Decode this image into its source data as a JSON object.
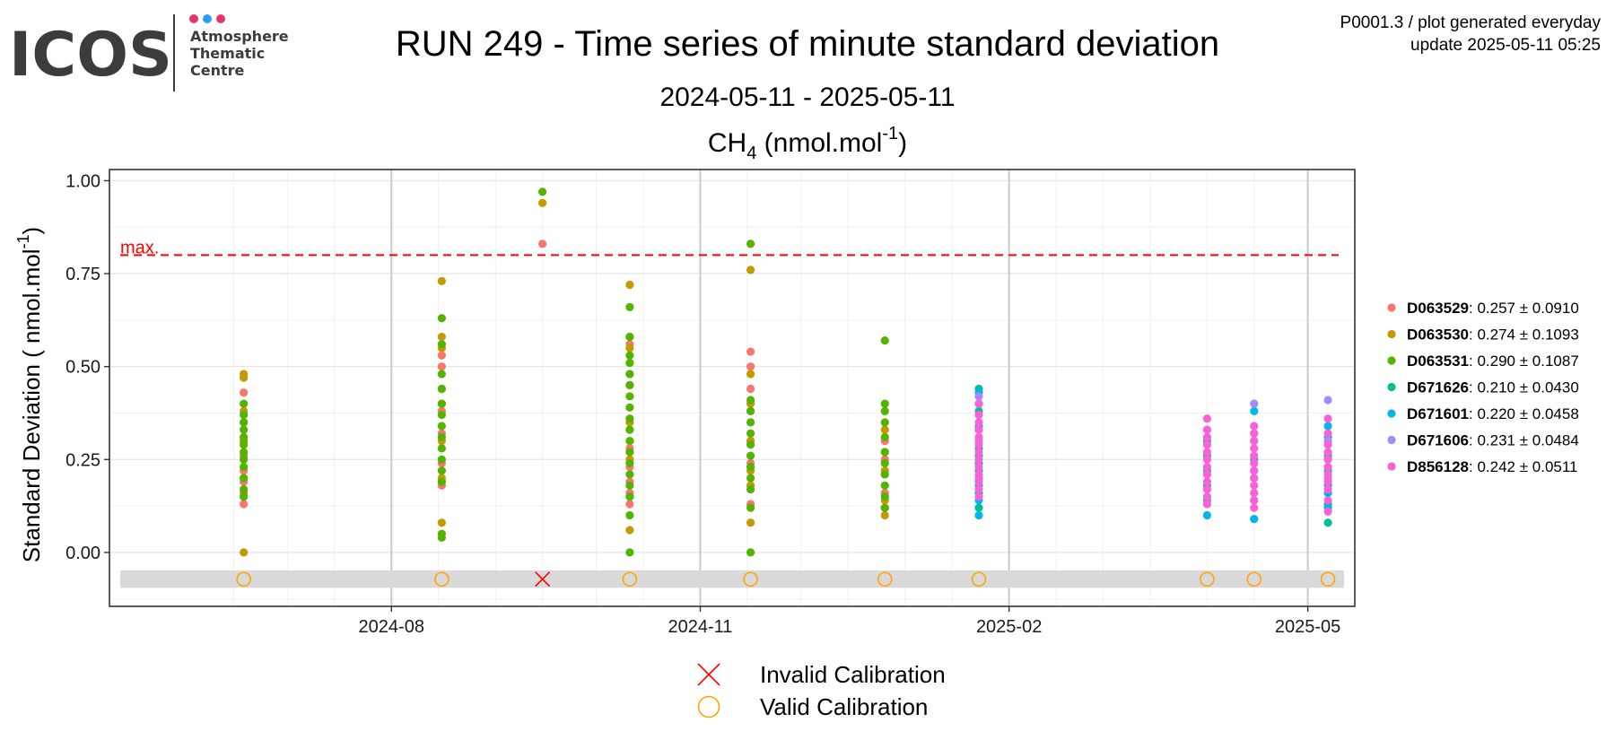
{
  "header": {
    "logo_text": "ICOS",
    "logo_sub_lines": [
      "Atmosphere",
      "Thematic",
      "Centre"
    ],
    "logo_dot_colors": [
      "#e8336d",
      "#2a9df4",
      "#e8336d"
    ],
    "title": "RUN 249 - Time series of minute standard deviation",
    "date_range": "2024-05-11 - 2025-05-11",
    "species_main": "CH",
    "species_sub": "4",
    "species_unit": " (nmol.mol",
    "species_exp": "-1",
    "species_close": ")",
    "meta_line1": "P0001.3 / plot generated everyday",
    "meta_line2": "update  2025-05-11 05:25"
  },
  "chart_data": {
    "type": "scatter",
    "title": "CH4 (nmol.mol-1)",
    "xlabel": "",
    "ylabel": "Standard Deviation ( nmol.mol",
    "ylabel_exp": "-1",
    "ylabel_close": ")",
    "x_range": [
      "2024-05-09",
      "2025-05-15"
    ],
    "ylim": [
      -0.145,
      1.03
    ],
    "y_ticks": [
      0.0,
      0.25,
      0.5,
      0.75,
      1.0
    ],
    "y_tick_labels": [
      "0.00",
      "0.25",
      "0.50",
      "0.75",
      "1.00"
    ],
    "x_ticks": [
      "2024-08-01",
      "2024-11-01",
      "2025-02-01",
      "2025-05-01"
    ],
    "x_tick_labels": [
      "2024-08",
      "2024-11",
      "2025-02",
      "2025-05"
    ],
    "grid": true,
    "legend_position": "right",
    "max_line": {
      "value": 0.8,
      "label": "max.",
      "color": "#ff0000"
    },
    "calibration_band": {
      "y_from": -0.095,
      "y_to": -0.048,
      "marker_y": -0.072,
      "color": "#d9d9d9"
    },
    "series": [
      {
        "name": "D063529",
        "color": "#F8766D",
        "mean": "0.257",
        "sd": "0.0910",
        "points": [
          [
            "2024-06-18",
            0.13
          ],
          [
            "2024-06-18",
            0.16
          ],
          [
            "2024-06-18",
            0.19
          ],
          [
            "2024-06-18",
            0.22
          ],
          [
            "2024-06-18",
            0.26
          ],
          [
            "2024-06-18",
            0.3
          ],
          [
            "2024-06-18",
            0.35
          ],
          [
            "2024-06-18",
            0.43
          ],
          [
            "2024-08-16",
            0.18
          ],
          [
            "2024-08-16",
            0.24
          ],
          [
            "2024-08-16",
            0.32
          ],
          [
            "2024-08-16",
            0.38
          ],
          [
            "2024-08-16",
            0.44
          ],
          [
            "2024-08-16",
            0.5
          ],
          [
            "2024-08-16",
            0.53
          ],
          [
            "2024-09-15",
            0.83
          ],
          [
            "2024-10-11",
            0.13
          ],
          [
            "2024-10-11",
            0.16
          ],
          [
            "2024-10-11",
            0.19
          ],
          [
            "2024-10-11",
            0.23
          ],
          [
            "2024-10-11",
            0.28
          ],
          [
            "2024-10-11",
            0.35
          ],
          [
            "2024-10-11",
            0.48
          ],
          [
            "2024-10-11",
            0.56
          ],
          [
            "2024-11-16",
            0.13
          ],
          [
            "2024-11-16",
            0.18
          ],
          [
            "2024-11-16",
            0.24
          ],
          [
            "2024-11-16",
            0.3
          ],
          [
            "2024-11-16",
            0.38
          ],
          [
            "2024-11-16",
            0.44
          ],
          [
            "2024-11-16",
            0.5
          ],
          [
            "2024-11-16",
            0.54
          ],
          [
            "2024-12-26",
            0.12
          ],
          [
            "2024-12-26",
            0.16
          ],
          [
            "2024-12-26",
            0.21
          ],
          [
            "2024-12-26",
            0.25
          ],
          [
            "2024-12-26",
            0.3
          ]
        ]
      },
      {
        "name": "D063530",
        "color": "#C49A00",
        "mean": "0.274",
        "sd": "0.1093",
        "points": [
          [
            "2024-06-18",
            0.0
          ],
          [
            "2024-06-18",
            0.15
          ],
          [
            "2024-06-18",
            0.2
          ],
          [
            "2024-06-18",
            0.25
          ],
          [
            "2024-06-18",
            0.3
          ],
          [
            "2024-06-18",
            0.38
          ],
          [
            "2024-06-18",
            0.47
          ],
          [
            "2024-06-18",
            0.48
          ],
          [
            "2024-08-16",
            0.08
          ],
          [
            "2024-08-16",
            0.2
          ],
          [
            "2024-08-16",
            0.3
          ],
          [
            "2024-08-16",
            0.4
          ],
          [
            "2024-08-16",
            0.55
          ],
          [
            "2024-08-16",
            0.58
          ],
          [
            "2024-08-16",
            0.73
          ],
          [
            "2024-09-15",
            0.94
          ],
          [
            "2024-10-11",
            0.06
          ],
          [
            "2024-10-11",
            0.15
          ],
          [
            "2024-10-11",
            0.25
          ],
          [
            "2024-10-11",
            0.35
          ],
          [
            "2024-10-11",
            0.45
          ],
          [
            "2024-10-11",
            0.55
          ],
          [
            "2024-10-11",
            0.58
          ],
          [
            "2024-10-11",
            0.72
          ],
          [
            "2024-11-16",
            0.08
          ],
          [
            "2024-11-16",
            0.18
          ],
          [
            "2024-11-16",
            0.22
          ],
          [
            "2024-11-16",
            0.3
          ],
          [
            "2024-11-16",
            0.4
          ],
          [
            "2024-11-16",
            0.48
          ],
          [
            "2024-11-16",
            0.76
          ],
          [
            "2024-12-26",
            0.1
          ],
          [
            "2024-12-26",
            0.14
          ],
          [
            "2024-12-26",
            0.22
          ],
          [
            "2024-12-26",
            0.27
          ],
          [
            "2024-12-26",
            0.33
          ]
        ]
      },
      {
        "name": "D063531",
        "color": "#53B400",
        "mean": "0.290",
        "sd": "0.1087",
        "points": [
          [
            "2024-06-18",
            0.15
          ],
          [
            "2024-06-18",
            0.17
          ],
          [
            "2024-06-18",
            0.2
          ],
          [
            "2024-06-18",
            0.23
          ],
          [
            "2024-06-18",
            0.25
          ],
          [
            "2024-06-18",
            0.27
          ],
          [
            "2024-06-18",
            0.29
          ],
          [
            "2024-06-18",
            0.31
          ],
          [
            "2024-06-18",
            0.33
          ],
          [
            "2024-06-18",
            0.35
          ],
          [
            "2024-06-18",
            0.37
          ],
          [
            "2024-06-18",
            0.4
          ],
          [
            "2024-08-16",
            0.04
          ],
          [
            "2024-08-16",
            0.05
          ],
          [
            "2024-08-16",
            0.19
          ],
          [
            "2024-08-16",
            0.22
          ],
          [
            "2024-08-16",
            0.25
          ],
          [
            "2024-08-16",
            0.28
          ],
          [
            "2024-08-16",
            0.31
          ],
          [
            "2024-08-16",
            0.34
          ],
          [
            "2024-08-16",
            0.37
          ],
          [
            "2024-08-16",
            0.4
          ],
          [
            "2024-08-16",
            0.44
          ],
          [
            "2024-08-16",
            0.48
          ],
          [
            "2024-08-16",
            0.56
          ],
          [
            "2024-08-16",
            0.63
          ],
          [
            "2024-09-15",
            0.97
          ],
          [
            "2024-10-11",
            0.0
          ],
          [
            "2024-10-11",
            0.1
          ],
          [
            "2024-10-11",
            0.15
          ],
          [
            "2024-10-11",
            0.18
          ],
          [
            "2024-10-11",
            0.21
          ],
          [
            "2024-10-11",
            0.24
          ],
          [
            "2024-10-11",
            0.27
          ],
          [
            "2024-10-11",
            0.3
          ],
          [
            "2024-10-11",
            0.33
          ],
          [
            "2024-10-11",
            0.36
          ],
          [
            "2024-10-11",
            0.39
          ],
          [
            "2024-10-11",
            0.42
          ],
          [
            "2024-10-11",
            0.45
          ],
          [
            "2024-10-11",
            0.48
          ],
          [
            "2024-10-11",
            0.51
          ],
          [
            "2024-10-11",
            0.53
          ],
          [
            "2024-10-11",
            0.58
          ],
          [
            "2024-10-11",
            0.66
          ],
          [
            "2024-11-16",
            0.0
          ],
          [
            "2024-11-16",
            0.12
          ],
          [
            "2024-11-16",
            0.17
          ],
          [
            "2024-11-16",
            0.2
          ],
          [
            "2024-11-16",
            0.23
          ],
          [
            "2024-11-16",
            0.26
          ],
          [
            "2024-11-16",
            0.29
          ],
          [
            "2024-11-16",
            0.32
          ],
          [
            "2024-11-16",
            0.35
          ],
          [
            "2024-11-16",
            0.38
          ],
          [
            "2024-11-16",
            0.41
          ],
          [
            "2024-11-16",
            0.83
          ],
          [
            "2024-12-26",
            0.12
          ],
          [
            "2024-12-26",
            0.15
          ],
          [
            "2024-12-26",
            0.18
          ],
          [
            "2024-12-26",
            0.21
          ],
          [
            "2024-12-26",
            0.24
          ],
          [
            "2024-12-26",
            0.27
          ],
          [
            "2024-12-26",
            0.31
          ],
          [
            "2024-12-26",
            0.35
          ],
          [
            "2024-12-26",
            0.38
          ],
          [
            "2024-12-26",
            0.4
          ],
          [
            "2024-12-26",
            0.57
          ]
        ]
      },
      {
        "name": "D671626",
        "color": "#00C094",
        "mean": "0.210",
        "sd": "0.0430",
        "points": [
          [
            "2025-01-23",
            0.12
          ],
          [
            "2025-01-23",
            0.16
          ],
          [
            "2025-01-23",
            0.2
          ],
          [
            "2025-01-23",
            0.24
          ],
          [
            "2025-01-23",
            0.28
          ],
          [
            "2025-01-23",
            0.33
          ],
          [
            "2025-01-23",
            0.38
          ],
          [
            "2025-01-23",
            0.44
          ],
          [
            "2025-05-07",
            0.08
          ],
          [
            "2025-05-07",
            0.13
          ],
          [
            "2025-05-07",
            0.18
          ],
          [
            "2025-05-07",
            0.22
          ],
          [
            "2025-05-07",
            0.26
          ],
          [
            "2025-05-07",
            0.31
          ]
        ]
      },
      {
        "name": "D671601",
        "color": "#00B6EB",
        "mean": "0.220",
        "sd": "0.0458",
        "points": [
          [
            "2025-01-23",
            0.1
          ],
          [
            "2025-01-23",
            0.14
          ],
          [
            "2025-01-23",
            0.18
          ],
          [
            "2025-01-23",
            0.22
          ],
          [
            "2025-01-23",
            0.26
          ],
          [
            "2025-01-23",
            0.3
          ],
          [
            "2025-01-23",
            0.34
          ],
          [
            "2025-01-23",
            0.4
          ],
          [
            "2025-01-23",
            0.43
          ],
          [
            "2025-04-01",
            0.1
          ],
          [
            "2025-04-01",
            0.14
          ],
          [
            "2025-04-01",
            0.18
          ],
          [
            "2025-04-01",
            0.22
          ],
          [
            "2025-04-01",
            0.26
          ],
          [
            "2025-04-01",
            0.3
          ],
          [
            "2025-04-15",
            0.09
          ],
          [
            "2025-04-15",
            0.14
          ],
          [
            "2025-04-15",
            0.2
          ],
          [
            "2025-04-15",
            0.25
          ],
          [
            "2025-04-15",
            0.3
          ],
          [
            "2025-04-15",
            0.38
          ],
          [
            "2025-05-07",
            0.12
          ],
          [
            "2025-05-07",
            0.16
          ],
          [
            "2025-05-07",
            0.2
          ],
          [
            "2025-05-07",
            0.25
          ],
          [
            "2025-05-07",
            0.34
          ]
        ]
      },
      {
        "name": "D671606",
        "color": "#A58AFF",
        "mean": "0.231",
        "sd": "0.0484",
        "points": [
          [
            "2025-01-23",
            0.2
          ],
          [
            "2025-01-23",
            0.3
          ],
          [
            "2025-01-23",
            0.42
          ],
          [
            "2025-04-15",
            0.22
          ],
          [
            "2025-04-15",
            0.32
          ],
          [
            "2025-04-15",
            0.4
          ],
          [
            "2025-05-07",
            0.2
          ],
          [
            "2025-05-07",
            0.3
          ],
          [
            "2025-05-07",
            0.41
          ]
        ]
      },
      {
        "name": "D856128",
        "color": "#FB61D7",
        "mean": "0.242",
        "sd": "0.0511",
        "points": [
          [
            "2025-01-23",
            0.15
          ],
          [
            "2025-01-23",
            0.17
          ],
          [
            "2025-01-23",
            0.19
          ],
          [
            "2025-01-23",
            0.21
          ],
          [
            "2025-01-23",
            0.23
          ],
          [
            "2025-01-23",
            0.25
          ],
          [
            "2025-01-23",
            0.27
          ],
          [
            "2025-01-23",
            0.29
          ],
          [
            "2025-01-23",
            0.31
          ],
          [
            "2025-01-23",
            0.33
          ],
          [
            "2025-01-23",
            0.35
          ],
          [
            "2025-01-23",
            0.37
          ],
          [
            "2025-01-23",
            0.4
          ],
          [
            "2025-04-01",
            0.13
          ],
          [
            "2025-04-01",
            0.15
          ],
          [
            "2025-04-01",
            0.17
          ],
          [
            "2025-04-01",
            0.19
          ],
          [
            "2025-04-01",
            0.21
          ],
          [
            "2025-04-01",
            0.23
          ],
          [
            "2025-04-01",
            0.25
          ],
          [
            "2025-04-01",
            0.27
          ],
          [
            "2025-04-01",
            0.29
          ],
          [
            "2025-04-01",
            0.31
          ],
          [
            "2025-04-01",
            0.33
          ],
          [
            "2025-04-01",
            0.36
          ],
          [
            "2025-04-15",
            0.12
          ],
          [
            "2025-04-15",
            0.14
          ],
          [
            "2025-04-15",
            0.16
          ],
          [
            "2025-04-15",
            0.18
          ],
          [
            "2025-04-15",
            0.2
          ],
          [
            "2025-04-15",
            0.22
          ],
          [
            "2025-04-15",
            0.24
          ],
          [
            "2025-04-15",
            0.26
          ],
          [
            "2025-04-15",
            0.28
          ],
          [
            "2025-04-15",
            0.3
          ],
          [
            "2025-04-15",
            0.32
          ],
          [
            "2025-04-15",
            0.34
          ],
          [
            "2025-05-07",
            0.11
          ],
          [
            "2025-05-07",
            0.14
          ],
          [
            "2025-05-07",
            0.17
          ],
          [
            "2025-05-07",
            0.19
          ],
          [
            "2025-05-07",
            0.21
          ],
          [
            "2025-05-07",
            0.23
          ],
          [
            "2025-05-07",
            0.25
          ],
          [
            "2025-05-07",
            0.27
          ],
          [
            "2025-05-07",
            0.29
          ],
          [
            "2025-05-07",
            0.32
          ],
          [
            "2025-05-07",
            0.36
          ]
        ]
      }
    ],
    "calibrations": [
      {
        "date": "2024-06-18",
        "status": "valid"
      },
      {
        "date": "2024-08-16",
        "status": "valid"
      },
      {
        "date": "2024-09-15",
        "status": "invalid"
      },
      {
        "date": "2024-10-11",
        "status": "valid"
      },
      {
        "date": "2024-11-16",
        "status": "valid"
      },
      {
        "date": "2024-12-26",
        "status": "valid"
      },
      {
        "date": "2025-01-23",
        "status": "valid"
      },
      {
        "date": "2025-04-01",
        "status": "valid"
      },
      {
        "date": "2025-04-15",
        "status": "valid"
      },
      {
        "date": "2025-05-07",
        "status": "valid"
      }
    ],
    "calibration_legend": [
      {
        "status": "invalid",
        "label": "Invalid Calibration",
        "color": "#ff0000"
      },
      {
        "status": "valid",
        "label": "Valid Calibration",
        "color": "#FFA500"
      }
    ]
  }
}
